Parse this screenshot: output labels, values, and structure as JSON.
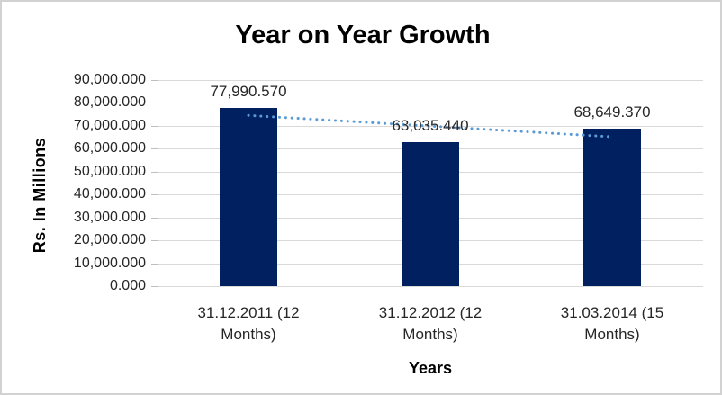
{
  "chart_data": {
    "type": "bar",
    "title": "Year on Year Growth",
    "xlabel": "Years",
    "ylabel": "Rs. In Millions",
    "categories": [
      "31.12.2011 (12 Months)",
      "31.12.2012 (12 Months)",
      "31.03.2014 (15 Months)"
    ],
    "values": [
      77990.57,
      63035.44,
      68649.37
    ],
    "data_labels": [
      "77,990.570",
      "63,035.440",
      "68,649.370"
    ],
    "y_ticks": [
      0,
      10000,
      20000,
      30000,
      40000,
      50000,
      60000,
      70000,
      80000,
      90000
    ],
    "y_tick_labels": [
      "0.000",
      "10,000.000",
      "20,000.000",
      "30,000.000",
      "40,000.000",
      "50,000.000",
      "60,000.000",
      "70,000.000",
      "80,000.000",
      "90,000.000"
    ],
    "ylim": [
      0,
      90000
    ],
    "grid": true,
    "legend": "none",
    "bar_color": "#002060",
    "trendline": {
      "style": "dotted",
      "color": "#5B9BD5",
      "start_value": 74562,
      "end_value": 65221
    }
  }
}
